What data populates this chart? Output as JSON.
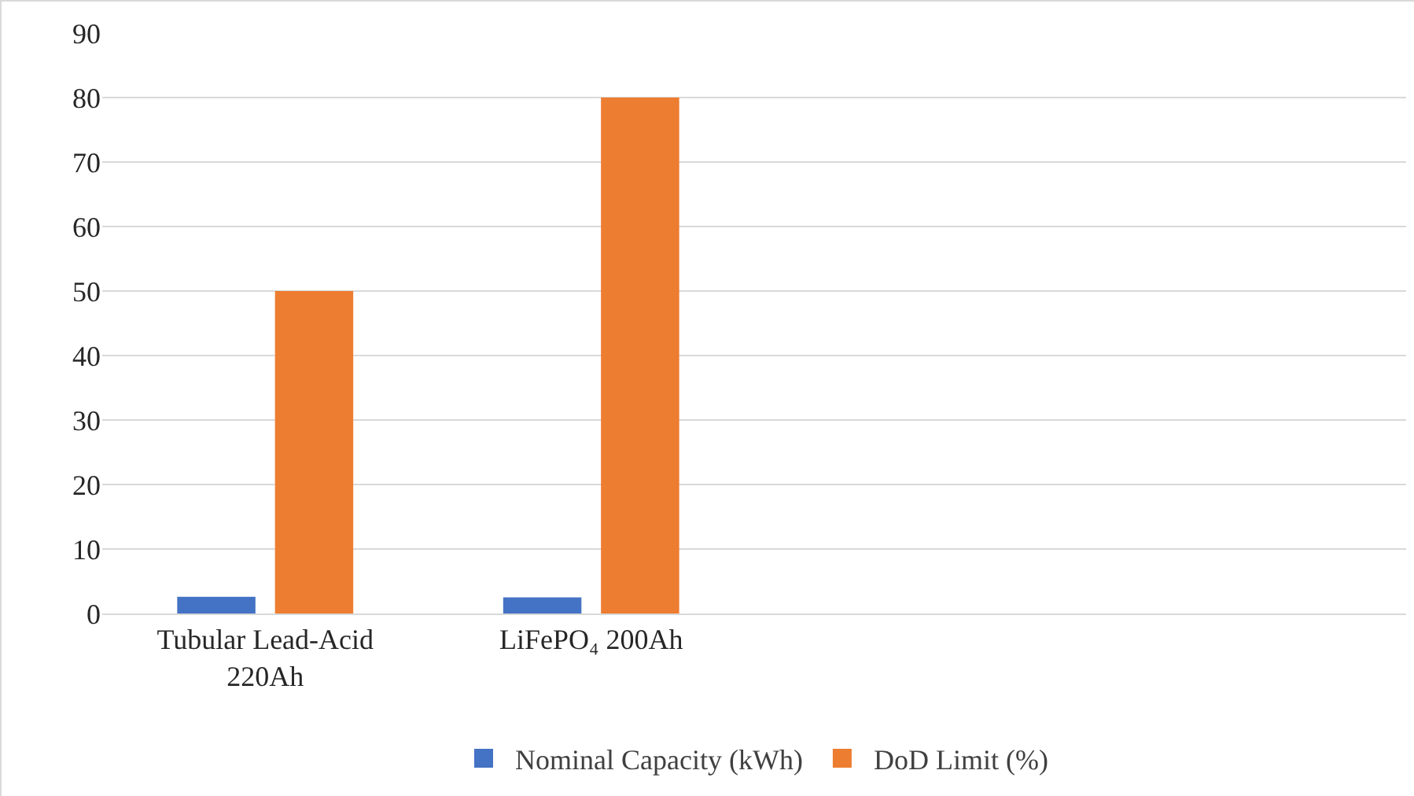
{
  "chart_data": {
    "type": "bar",
    "categories": [
      "Tubular Lead-Acid 220Ah",
      "LiFePO₄ 200Ah",
      null,
      null
    ],
    "series": [
      {
        "name": "Nominal Capacity (kWh)",
        "color": "#4472c4",
        "values": [
          2.6,
          2.5,
          null,
          null
        ]
      },
      {
        "name": "DoD Limit (%)",
        "color": "#ed7d31",
        "values": [
          50,
          80,
          null,
          null
        ]
      }
    ],
    "ylim": [
      0,
      90
    ],
    "yticks": [
      0,
      10,
      20,
      30,
      40,
      50,
      60,
      70,
      80,
      90
    ],
    "grid": "y",
    "legend": "bottom"
  }
}
